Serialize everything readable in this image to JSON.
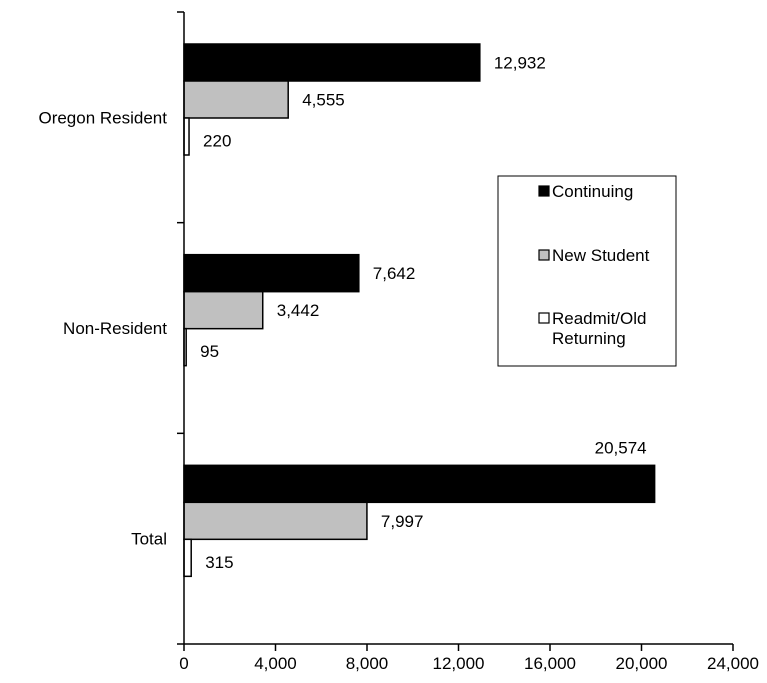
{
  "chart_data": {
    "type": "bar",
    "orientation": "horizontal",
    "categories": [
      "Oregon Resident",
      "Non-Resident",
      "Total"
    ],
    "series": [
      {
        "name": "Continuing",
        "values": [
          12932,
          7642,
          20574
        ],
        "labels": [
          "12,932",
          "7,642",
          "20,574"
        ],
        "color": "#000000"
      },
      {
        "name": "New Student",
        "values": [
          4555,
          3442,
          7997
        ],
        "labels": [
          "4,555",
          "3,442",
          "7,997"
        ],
        "color": "#c0c0c0"
      },
      {
        "name": "Readmit/Old Returning",
        "legend_lines": [
          "Readmit/Old",
          "Returning"
        ],
        "values": [
          220,
          95,
          315
        ],
        "labels": [
          "220",
          "95",
          "315"
        ],
        "color": "#ffffff"
      }
    ],
    "xlim": [
      0,
      24000
    ],
    "xticks": [
      0,
      4000,
      8000,
      12000,
      16000,
      20000,
      24000
    ],
    "xtick_labels": [
      "0",
      "4,000",
      "8,000",
      "12,000",
      "16,000",
      "20,000",
      "24,000"
    ],
    "grid": false,
    "legend_position": "right"
  }
}
